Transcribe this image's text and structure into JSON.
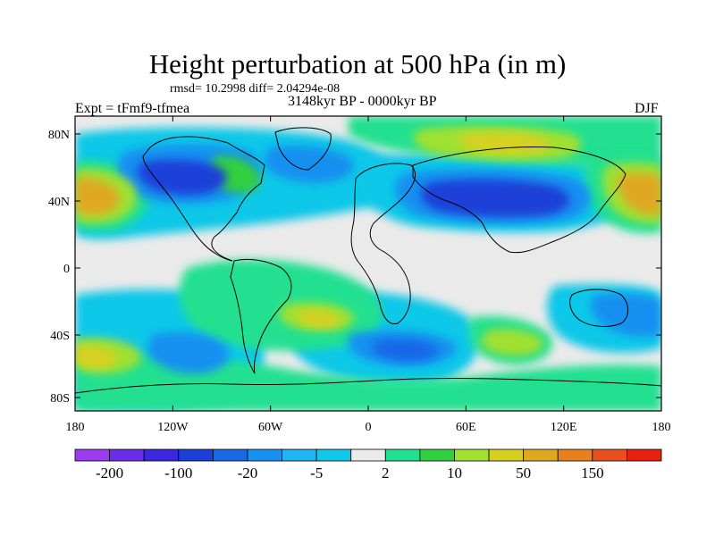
{
  "title": "Height perturbation at 500 hPa (in m)",
  "stats": "rmsd= 10.2998 diff= 2.04294e-08",
  "experiment": "Expt = tFmf9-tfmea",
  "period": "3148kyr BP - 0000kyr BP",
  "season": "DJF",
  "lat_ticks": [
    "80N",
    "40N",
    "0",
    "40S",
    "80S"
  ],
  "lon_ticks": [
    "180",
    "120W",
    "60W",
    "0",
    "60E",
    "120E",
    "180"
  ],
  "colorbar": {
    "colors": [
      "#9b3cf0",
      "#6a2ee8",
      "#3a28e0",
      "#1a40d8",
      "#1868e8",
      "#1890f0",
      "#20b4f0",
      "#10c8e8",
      "#eaeaea",
      "#20e090",
      "#30d040",
      "#a0e030",
      "#d8d020",
      "#e0a820",
      "#e88020",
      "#e85020",
      "#e82010"
    ],
    "labels": [
      "-200",
      "-100",
      "-20",
      "-5",
      "2",
      "10",
      "50",
      "150"
    ]
  },
  "palette": {
    "background": "#eaeaea",
    "neg1": "#10c8e8",
    "neg2": "#20b4f0",
    "neg3": "#1890f0",
    "neg4": "#1868e8",
    "neg5": "#1a40d8",
    "pos1": "#20e090",
    "pos2": "#30d040",
    "pos3": "#a0e030",
    "pos4": "#d8d020",
    "pos5": "#e0a820"
  }
}
